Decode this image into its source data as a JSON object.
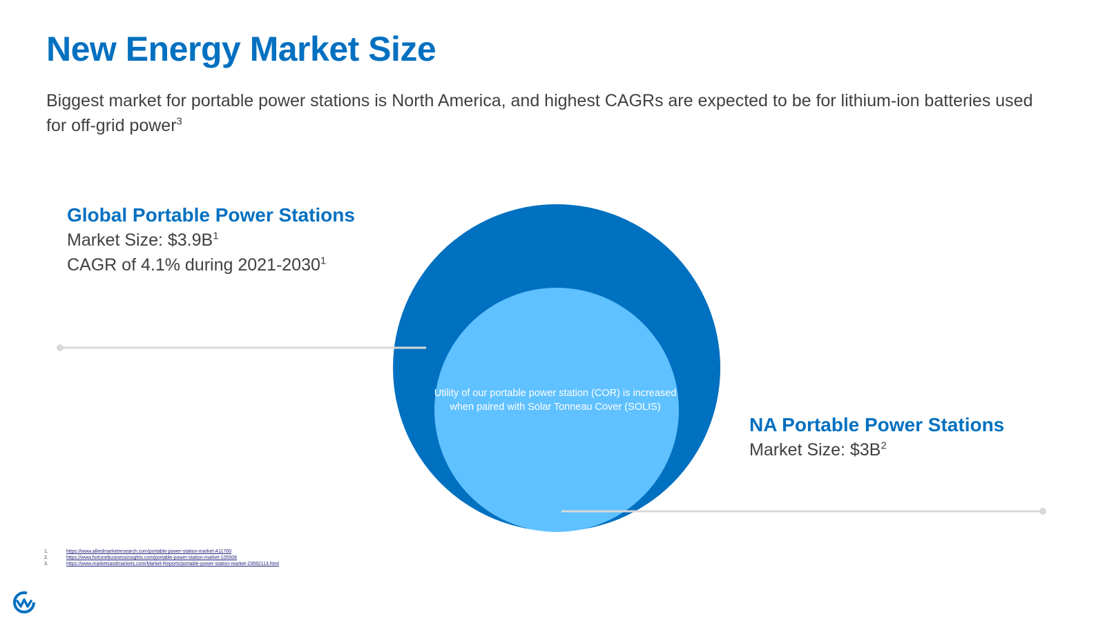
{
  "title": "New Energy Market Size",
  "subtitle": {
    "text": "Biggest market for portable power stations is North America, and highest CAGRs are expected to be for lithium-ion batteries used for off-grid power",
    "sup": "3"
  },
  "global": {
    "heading": "Global Portable Power Stations",
    "market_label": "Market Size: $3.9B",
    "market_sup": "1",
    "cagr_label": "CAGR of 4.1% during 2021-2030",
    "cagr_sup": "1"
  },
  "na": {
    "heading": "NA Portable Power Stations",
    "market_label": "Market Size: $3B",
    "market_sup": "2"
  },
  "center_text": "Utility of our portable power station (COR) is increased when paired with Solar Tonneau Cover (SOLIS)",
  "colors": {
    "outer_circle": "#0070c0",
    "inner_circle": "#5fc1ff",
    "connector": "#d9d9d9",
    "heading": "#0070c0"
  },
  "footnotes": [
    {
      "num": "1.",
      "url": "https://www.alliedmarketresearch.com/portable-power-station-market-A11700"
    },
    {
      "num": "2.",
      "url": "https://www.fortunebusinessinsights.com/portable-power-station-market-105508"
    },
    {
      "num": "3.",
      "url": "https://www.marketsandmarkets.com/Market-Reports/portable-power-station-market-23592113.html"
    }
  ],
  "logo_icon": "company-logo-icon"
}
